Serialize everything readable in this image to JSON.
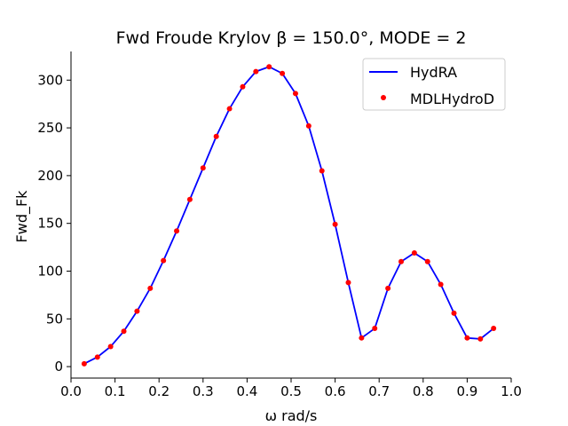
{
  "chart_data": {
    "type": "line",
    "title": "Fwd Froude Krylov β = 150.0°, MODE = 2",
    "xlabel": "ω rad/s",
    "ylabel": "Fwd_Fk",
    "xlim": [
      0.0,
      1.0
    ],
    "ylim": [
      -12,
      330
    ],
    "xticks": [
      0.0,
      0.1,
      0.2,
      0.3,
      0.4,
      0.5,
      0.6,
      0.7,
      0.8,
      0.9,
      1.0
    ],
    "xtick_labels": [
      "0.0",
      "0.1",
      "0.2",
      "0.3",
      "0.4",
      "0.5",
      "0.6",
      "0.7",
      "0.8",
      "0.9",
      "1.0"
    ],
    "yticks": [
      0,
      50,
      100,
      150,
      200,
      250,
      300
    ],
    "ytick_labels": [
      "0",
      "50",
      "100",
      "150",
      "200",
      "250",
      "300"
    ],
    "grid": false,
    "legend_position": "top-right",
    "x": [
      0.03,
      0.06,
      0.09,
      0.12,
      0.15,
      0.18,
      0.21,
      0.24,
      0.27,
      0.3,
      0.33,
      0.36,
      0.39,
      0.42,
      0.45,
      0.48,
      0.51,
      0.54,
      0.57,
      0.6,
      0.63,
      0.66,
      0.69,
      0.72,
      0.75,
      0.78,
      0.81,
      0.84,
      0.87,
      0.9,
      0.93,
      0.96
    ],
    "series": [
      {
        "name": "HydRA",
        "style": "line",
        "color": "#0000ff",
        "values": [
          3,
          10,
          21,
          37,
          58,
          82,
          111,
          142,
          175,
          208,
          241,
          270,
          293,
          309,
          314,
          307,
          286,
          252,
          205,
          149,
          88,
          30,
          40,
          82,
          110,
          119,
          110,
          86,
          56,
          30,
          29,
          40
        ]
      },
      {
        "name": "MDLHydroD",
        "style": "markers",
        "color": "#ff0000",
        "values": [
          3,
          10,
          21,
          37,
          58,
          82,
          111,
          142,
          175,
          208,
          241,
          270,
          293,
          309,
          314,
          307,
          286,
          252,
          205,
          149,
          88,
          30,
          40,
          82,
          110,
          119,
          110,
          86,
          56,
          30,
          29,
          40
        ]
      }
    ]
  }
}
